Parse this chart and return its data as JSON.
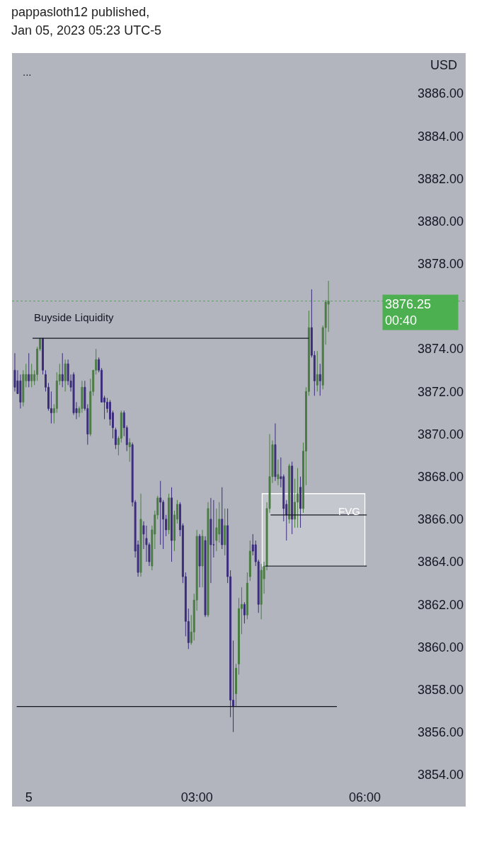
{
  "chart_data": {
    "type": "candlestick",
    "title": "pappasloth12 published,",
    "subtitle": "Jan 05, 2023 05:23 UTC-5",
    "ylabel": "USD",
    "x": [
      "2023-01-04T23:45",
      "2023-01-04T23:48",
      "2023-01-04T23:51",
      "2023-01-04T23:54",
      "2023-01-04T23:57",
      "2023-01-05T00:00",
      "2023-01-05T00:03",
      "2023-01-05T00:06",
      "2023-01-05T00:09",
      "2023-01-05T00:12",
      "2023-01-05T00:15",
      "2023-01-05T00:18",
      "2023-01-05T00:21",
      "2023-01-05T00:24",
      "2023-01-05T00:27",
      "2023-01-05T00:30",
      "2023-01-05T00:33",
      "2023-01-05T00:36",
      "2023-01-05T00:39",
      "2023-01-05T00:42",
      "2023-01-05T00:45",
      "2023-01-05T00:48",
      "2023-01-05T00:51",
      "2023-01-05T00:54",
      "2023-01-05T00:57",
      "2023-01-05T01:00",
      "2023-01-05T01:03",
      "2023-01-05T01:06",
      "2023-01-05T01:09",
      "2023-01-05T01:12",
      "2023-01-05T01:15",
      "2023-01-05T01:18",
      "2023-01-05T01:21",
      "2023-01-05T01:24",
      "2023-01-05T01:27",
      "2023-01-05T01:30",
      "2023-01-05T01:33",
      "2023-01-05T01:36",
      "2023-01-05T01:39",
      "2023-01-05T01:42",
      "2023-01-05T01:45",
      "2023-01-05T01:48",
      "2023-01-05T01:51",
      "2023-01-05T01:54",
      "2023-01-05T01:57",
      "2023-01-05T02:00",
      "2023-01-05T02:03",
      "2023-01-05T02:06",
      "2023-01-05T02:09",
      "2023-01-05T02:12",
      "2023-01-05T02:15",
      "2023-01-05T02:18",
      "2023-01-05T02:21",
      "2023-01-05T02:24",
      "2023-01-05T02:27",
      "2023-01-05T02:30",
      "2023-01-05T02:33",
      "2023-01-05T02:36",
      "2023-01-05T02:39",
      "2023-01-05T02:42",
      "2023-01-05T02:45",
      "2023-01-05T02:48",
      "2023-01-05T02:51",
      "2023-01-05T02:54",
      "2023-01-05T02:57",
      "2023-01-05T03:00",
      "2023-01-05T03:03",
      "2023-01-05T03:06",
      "2023-01-05T03:09",
      "2023-01-05T03:12",
      "2023-01-05T03:15",
      "2023-01-05T03:18",
      "2023-01-05T03:21",
      "2023-01-05T03:24",
      "2023-01-05T03:27",
      "2023-01-05T03:30",
      "2023-01-05T03:33",
      "2023-01-05T03:36",
      "2023-01-05T03:39",
      "2023-01-05T03:42",
      "2023-01-05T03:45",
      "2023-01-05T03:48",
      "2023-01-05T03:51",
      "2023-01-05T03:54",
      "2023-01-05T03:57",
      "2023-01-05T04:00",
      "2023-01-05T04:03",
      "2023-01-05T04:06",
      "2023-01-05T04:09",
      "2023-01-05T04:12",
      "2023-01-05T04:15",
      "2023-01-05T04:18",
      "2023-01-05T04:21",
      "2023-01-05T04:24",
      "2023-01-05T04:27",
      "2023-01-05T04:30",
      "2023-01-05T04:33",
      "2023-01-05T04:36",
      "2023-01-05T04:39",
      "2023-01-05T04:42",
      "2023-01-05T04:45",
      "2023-01-05T04:48",
      "2023-01-05T04:51",
      "2023-01-05T04:54",
      "2023-01-05T04:57",
      "2023-01-05T05:00",
      "2023-01-05T05:03",
      "2023-01-05T05:06",
      "2023-01-05T05:09",
      "2023-01-05T05:12",
      "2023-01-05T05:15",
      "2023-01-05T05:18",
      "2023-01-05T05:21"
    ],
    "ohlc": [
      [
        3873.0,
        3873.8,
        3872.0,
        3872.2
      ],
      [
        3872.5,
        3873.0,
        3871.9,
        3871.9
      ],
      [
        3872.5,
        3872.8,
        3871.2,
        3871.5
      ],
      [
        3871.5,
        3873.0,
        3871.3,
        3872.8
      ],
      [
        3872.5,
        3873.3,
        3872.2,
        3872.8
      ],
      [
        3872.8,
        3873.8,
        3872.2,
        3872.5
      ],
      [
        3872.5,
        3873.3,
        3872.2,
        3872.8
      ],
      [
        3872.5,
        3873.0,
        3872.3,
        3872.8
      ],
      [
        3872.8,
        3874.1,
        3872.5,
        3874.0
      ],
      [
        3874.0,
        3874.5,
        3873.9,
        3874.5
      ],
      [
        3874.5,
        3874.5,
        3872.8,
        3873.0
      ],
      [
        3872.8,
        3873.0,
        3872.0,
        3872.2
      ],
      [
        3872.2,
        3872.4,
        3871.1,
        3871.2
      ],
      [
        3871.2,
        3872.0,
        3870.5,
        3871.0
      ],
      [
        3871.0,
        3871.4,
        3870.5,
        3871.2
      ],
      [
        3871.2,
        3872.9,
        3871.0,
        3872.5
      ],
      [
        3872.5,
        3873.3,
        3872.3,
        3872.8
      ],
      [
        3872.8,
        3873.8,
        3872.2,
        3872.5
      ],
      [
        3872.5,
        3873.5,
        3872.0,
        3873.3
      ],
      [
        3873.3,
        3873.5,
        3872.3,
        3872.5
      ],
      [
        3872.5,
        3872.8,
        3872.0,
        3872.2
      ],
      [
        3872.8,
        3872.9,
        3870.9,
        3871.0
      ],
      [
        3871.2,
        3871.5,
        3870.7,
        3871.0
      ],
      [
        3871.0,
        3871.3,
        3870.8,
        3871.2
      ],
      [
        3871.2,
        3872.5,
        3871.0,
        3872.2
      ],
      [
        3872.2,
        3872.5,
        3871.1,
        3871.2
      ],
      [
        3871.2,
        3871.4,
        3869.5,
        3870.0
      ],
      [
        3870.0,
        3872.6,
        3869.9,
        3872.0
      ],
      [
        3872.0,
        3873.0,
        3871.8,
        3873.0
      ],
      [
        3873.0,
        3874.0,
        3872.8,
        3873.5
      ],
      [
        3873.5,
        3873.6,
        3872.9,
        3873.0
      ],
      [
        3873.0,
        3873.1,
        3871.5,
        3871.5
      ],
      [
        3871.7,
        3871.8,
        3870.7,
        3871.5
      ],
      [
        3871.5,
        3871.7,
        3871.0,
        3871.2
      ],
      [
        3871.5,
        3871.6,
        3870.4,
        3870.7
      ],
      [
        3871.0,
        3871.1,
        3869.8,
        3870.3
      ],
      [
        3870.2,
        3870.3,
        3869.3,
        3869.5
      ],
      [
        3869.5,
        3869.9,
        3869.0,
        3869.8
      ],
      [
        3869.8,
        3871.1,
        3869.6,
        3871.0
      ],
      [
        3871.0,
        3871.1,
        3869.9,
        3870.3
      ],
      [
        3870.3,
        3870.4,
        3869.2,
        3869.5
      ],
      [
        3869.4,
        3869.8,
        3868.7,
        3869.6
      ],
      [
        3869.5,
        3869.6,
        3866.6,
        3866.8
      ],
      [
        3866.8,
        3866.9,
        3864.2,
        3864.5
      ],
      [
        3864.8,
        3865.0,
        3863.3,
        3863.5
      ],
      [
        3863.5,
        3867.2,
        3863.3,
        3866.0
      ],
      [
        3865.7,
        3865.9,
        3864.6,
        3865.3
      ],
      [
        3865.1,
        3865.7,
        3864.0,
        3864.8
      ],
      [
        3864.8,
        3864.9,
        3863.8,
        3864.0
      ],
      [
        3863.8,
        3865.7,
        3863.6,
        3865.5
      ],
      [
        3865.3,
        3866.4,
        3864.6,
        3866.2
      ],
      [
        3866.2,
        3867.1,
        3866.0,
        3867.0
      ],
      [
        3867.0,
        3867.8,
        3864.8,
        3866.8
      ],
      [
        3866.8,
        3866.9,
        3864.6,
        3866.0
      ],
      [
        3866.0,
        3866.2,
        3865.2,
        3865.5
      ],
      [
        3865.5,
        3867.2,
        3865.3,
        3867.0
      ],
      [
        3867.0,
        3867.5,
        3864.0,
        3865.0
      ],
      [
        3865.0,
        3866.4,
        3864.5,
        3866.2
      ],
      [
        3866.0,
        3866.9,
        3865.8,
        3866.7
      ],
      [
        3866.7,
        3866.8,
        3865.2,
        3865.5
      ],
      [
        3865.7,
        3865.8,
        3863.0,
        3863.3
      ],
      [
        3863.3,
        3863.5,
        3860.5,
        3861.2
      ],
      [
        3861.2,
        3861.8,
        3859.9,
        3860.2
      ],
      [
        3860.2,
        3861.5,
        3860.1,
        3860.7
      ],
      [
        3860.7,
        3862.5,
        3860.3,
        3862.2
      ],
      [
        3862.2,
        3865.5,
        3861.7,
        3865.2
      ],
      [
        3865.2,
        3865.3,
        3862.8,
        3863.8
      ],
      [
        3863.8,
        3865.5,
        3862.8,
        3865.2
      ],
      [
        3865.0,
        3865.2,
        3861.4,
        3861.5
      ],
      [
        3861.5,
        3866.8,
        3861.4,
        3866.5
      ],
      [
        3866.0,
        3867.0,
        3863.0,
        3864.8
      ],
      [
        3864.8,
        3866.9,
        3864.2,
        3864.8
      ],
      [
        3865.0,
        3866.5,
        3864.5,
        3865.6
      ],
      [
        3865.3,
        3866.8,
        3864.9,
        3866.0
      ],
      [
        3866.0,
        3867.5,
        3864.6,
        3864.8
      ],
      [
        3864.8,
        3866.5,
        3864.3,
        3865.7
      ],
      [
        3865.7,
        3866.5,
        3863.0,
        3863.3
      ],
      [
        3863.3,
        3863.6,
        3856.7,
        3857.5
      ],
      [
        3857.5,
        3860.3,
        3856.0,
        3857.2
      ],
      [
        3857.8,
        3859.2,
        3857.2,
        3859.0
      ],
      [
        3859.2,
        3862.3,
        3858.7,
        3861.8
      ],
      [
        3861.8,
        3862.8,
        3860.6,
        3862.0
      ],
      [
        3862.0,
        3862.1,
        3861.1,
        3861.5
      ],
      [
        3861.5,
        3863.5,
        3861.3,
        3863.0
      ],
      [
        3863.3,
        3865.0,
        3863.1,
        3864.5
      ],
      [
        3864.8,
        3865.3,
        3864.3,
        3864.5
      ],
      [
        3864.8,
        3865.0,
        3863.8,
        3864.0
      ],
      [
        3864.0,
        3864.1,
        3861.6,
        3862.0
      ],
      [
        3862.0,
        3863.9,
        3861.3,
        3863.6
      ],
      [
        3863.2,
        3864.0,
        3862.5,
        3863.8
      ],
      [
        3863.8,
        3866.8,
        3863.6,
        3866.5
      ],
      [
        3866.5,
        3870.0,
        3866.3,
        3868.0
      ],
      [
        3868.0,
        3869.7,
        3867.7,
        3869.5
      ],
      [
        3869.5,
        3870.5,
        3867.8,
        3868.0
      ],
      [
        3867.9,
        3868.8,
        3867.6,
        3868.1
      ],
      [
        3868.0,
        3868.9,
        3867.5,
        3867.9
      ],
      [
        3868.0,
        3868.1,
        3865.9,
        3866.5
      ],
      [
        3866.7,
        3866.9,
        3865.0,
        3866.2
      ],
      [
        3866.0,
        3868.6,
        3865.8,
        3868.5
      ],
      [
        3868.5,
        3868.7,
        3865.3,
        3866.0
      ],
      [
        3866.0,
        3867.9,
        3865.6,
        3866.8
      ],
      [
        3866.8,
        3868.4,
        3865.6,
        3867.2
      ],
      [
        3867.5,
        3868.0,
        3865.6,
        3866.5
      ],
      [
        3866.5,
        3869.6,
        3866.3,
        3869.2
      ],
      [
        3869.2,
        3872.2,
        3867.6,
        3872.0
      ],
      [
        3872.0,
        3875.8,
        3871.8,
        3875.0
      ],
      [
        3875.0,
        3876.8,
        3873.6,
        3873.7
      ],
      [
        3873.7,
        3873.9,
        3871.8,
        3872.5
      ],
      [
        3872.3,
        3873.9,
        3872.0,
        3872.8
      ],
      [
        3872.8,
        3873.3,
        3871.8,
        3872.5
      ],
      [
        3872.3,
        3875.1,
        3872.1,
        3875.0
      ],
      [
        3875.0,
        3876.3,
        3874.2,
        3876.2
      ],
      [
        3876.1,
        3877.2,
        3874.8,
        3876.25
      ]
    ],
    "colors": [
      "#3b2c7c",
      "#3b2c7c",
      "#3b2c7c",
      "#4a7c42",
      "#4a7c42",
      "#3b2c7c",
      "#4a7c42",
      "#4a7c42",
      "#4a7c42",
      "#4a7c42",
      "#3b2c7c",
      "#3b2c7c",
      "#3b2c7c",
      "#3b2c7c",
      "#4a7c42",
      "#4a7c42",
      "#4a7c42",
      "#3b2c7c",
      "#4a7c42",
      "#3b2c7c",
      "#3b2c7c",
      "#3b2c7c",
      "#3b2c7c",
      "#4a7c42",
      "#4a7c42",
      "#3b2c7c",
      "#3b2c7c",
      "#4a7c42",
      "#4a7c42",
      "#4a7c42",
      "#3b2c7c",
      "#3b2c7c",
      "#3b2c7c",
      "#3b2c7c",
      "#3b2c7c",
      "#3b2c7c",
      "#3b2c7c",
      "#4a7c42",
      "#4a7c42",
      "#3b2c7c",
      "#3b2c7c",
      "#4a7c42",
      "#3b2c7c",
      "#3b2c7c",
      "#3b2c7c",
      "#4a7c42",
      "#3b2c7c",
      "#3b2c7c",
      "#3b2c7c",
      "#4a7c42",
      "#4a7c42",
      "#4a7c42",
      "#3b2c7c",
      "#3b2c7c",
      "#3b2c7c",
      "#4a7c42",
      "#3b2c7c",
      "#4a7c42",
      "#4a7c42",
      "#3b2c7c",
      "#3b2c7c",
      "#3b2c7c",
      "#3b2c7c",
      "#4a7c42",
      "#4a7c42",
      "#4a7c42",
      "#3b2c7c",
      "#4a7c42",
      "#3b2c7c",
      "#4a7c42",
      "#3b2c7c",
      "#3b2c7c",
      "#4a7c42",
      "#4a7c42",
      "#3b2c7c",
      "#4a7c42",
      "#3b2c7c",
      "#3b2c7c",
      "#3b2c7c",
      "#4a7c42",
      "#4a7c42",
      "#4a7c42",
      "#3b2c7c",
      "#4a7c42",
      "#4a7c42",
      "#3b2c7c",
      "#3b2c7c",
      "#3b2c7c",
      "#4a7c42",
      "#4a7c42",
      "#4a7c42",
      "#4a7c42",
      "#4a7c42",
      "#3b2c7c",
      "#4a7c42",
      "#3b2c7c",
      "#3b2c7c",
      "#3b2c7c",
      "#4a7c42",
      "#3b2c7c",
      "#4a7c42",
      "#4a7c42",
      "#3b2c7c",
      "#4a7c42",
      "#4a7c42",
      "#4a7c42",
      "#3b2c7c",
      "#3b2c7c",
      "#4a7c42",
      "#3b2c7c",
      "#4a7c42",
      "#4a7c42",
      "#4a7c42"
    ],
    "series": [
      {
        "type": "line",
        "color": "#131722",
        "x": [
          "2023-01-05T00:04",
          "2023-01-05T05:00"
        ],
        "values": [
          3874.5,
          3874.5
        ]
      },
      {
        "type": "line",
        "color": "#131722",
        "x": [
          "2023-01-04T23:47",
          "2023-01-05T05:30"
        ],
        "values": [
          3857.2,
          3857.2
        ]
      },
      {
        "type": "line",
        "color": "#131722",
        "x": [
          "2023-01-05T04:19",
          "2023-01-05T06:02"
        ],
        "values": [
          3866.2,
          3866.2
        ]
      },
      {
        "type": "line",
        "color": "#131722",
        "x": [
          "2023-01-05T04:13",
          "2023-01-05T06:02"
        ],
        "values": [
          3863.8,
          3863.8
        ]
      },
      {
        "type": "area",
        "color": "#ffffff",
        "x": [
          "2023-01-05T04:10",
          "2023-01-05T06:00"
        ],
        "values": [
          null,
          null
        ],
        "lower": [
          3863.8,
          3863.8
        ],
        "upper": [
          3867.2,
          3867.2
        ]
      }
    ],
    "ref_lines": [
      {
        "axis": "y",
        "value": 3876.25,
        "label": "3876.25",
        "color": "#4caf50",
        "line_style": "dotted"
      }
    ],
    "annotations": [
      "...",
      "00:40",
      "Buyside Liquidity",
      "FVG"
    ],
    "xlim": [
      "2023-01-04T23:42",
      "2023-01-05T07:48"
    ],
    "ylim": [
      3852.5,
      3887.9
    ],
    "xticks": [
      {
        "value": "2023-01-05T00:00",
        "label": "5"
      },
      {
        "value": "2023-01-05T03:00",
        "label": "03:00"
      },
      {
        "value": "2023-01-05T06:00",
        "label": "06:00"
      }
    ],
    "yticks": [
      {
        "value": 3854,
        "label": "3854.00"
      },
      {
        "value": 3856,
        "label": "3856.00"
      },
      {
        "value": 3858,
        "label": "3858.00"
      },
      {
        "value": 3860,
        "label": "3860.00"
      },
      {
        "value": 3862,
        "label": "3862.00"
      },
      {
        "value": 3864,
        "label": "3864.00"
      },
      {
        "value": 3866,
        "label": "3866.00"
      },
      {
        "value": 3868,
        "label": "3868.00"
      },
      {
        "value": 3870,
        "label": "3870.00"
      },
      {
        "value": 3872,
        "label": "3872.00"
      },
      {
        "value": 3874,
        "label": "3874.00"
      },
      {
        "value": 3878,
        "label": "3878.00"
      },
      {
        "value": 3880,
        "label": "3880.00"
      },
      {
        "value": 3882,
        "label": "3882.00"
      },
      {
        "value": 3884,
        "label": "3884.00"
      },
      {
        "value": 3886,
        "label": "3886.00"
      }
    ],
    "grid": false
  }
}
